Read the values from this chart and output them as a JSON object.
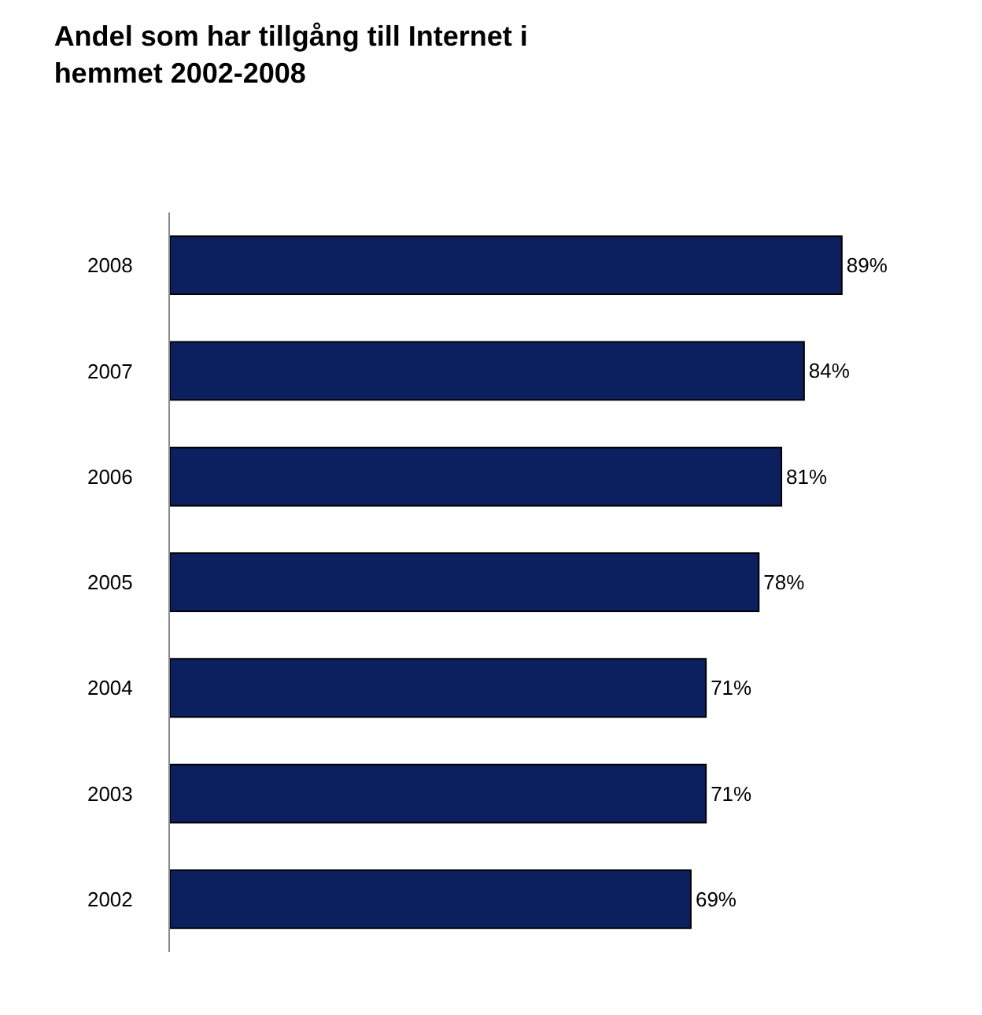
{
  "chart_data": {
    "type": "bar",
    "orientation": "horizontal",
    "title": "Andel som har tillgång till Internet i\nhemmet 2002-2008",
    "categories": [
      "2008",
      "2007",
      "2006",
      "2005",
      "2004",
      "2003",
      "2002"
    ],
    "values": [
      89,
      84,
      81,
      78,
      71,
      71,
      69
    ],
    "value_labels": [
      "89%",
      "84%",
      "81%",
      "78%",
      "71%",
      "71%",
      "69%"
    ],
    "color": "#0c1f5e",
    "legend": false,
    "tick_labels": "y"
  }
}
